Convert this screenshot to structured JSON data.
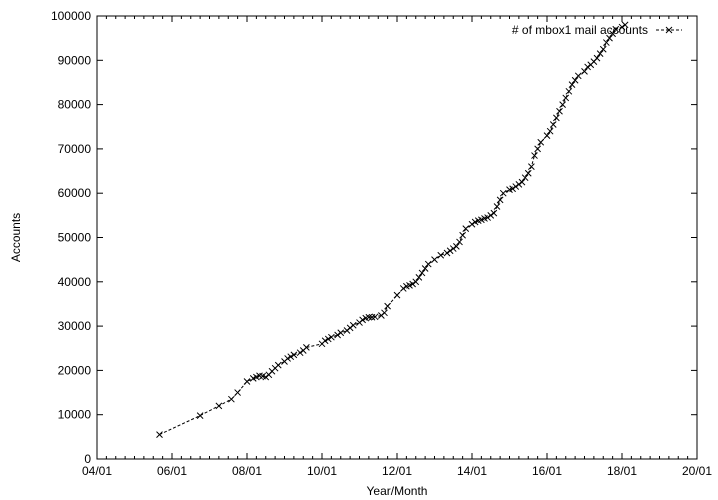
{
  "chart_data": {
    "type": "line",
    "title": "",
    "xlabel": "Year/Month",
    "ylabel": "Accounts",
    "x_tick_labels": [
      "04/01",
      "06/01",
      "08/01",
      "10/01",
      "12/01",
      "14/01",
      "16/01",
      "18/01",
      "20/01"
    ],
    "y_tick_labels": [
      "0",
      "10000",
      "20000",
      "30000",
      "40000",
      "50000",
      "60000",
      "70000",
      "80000",
      "90000",
      "100000"
    ],
    "xlim": [
      "04/01",
      "20/01"
    ],
    "ylim": [
      0,
      100000
    ],
    "grid": false,
    "legend_position": "top-right",
    "series": [
      {
        "name": "# of mbox1 mail accounts",
        "line_style": "dashed",
        "marker": "x",
        "color": "#000000",
        "x": [
          "05/09",
          "06/10",
          "07/04",
          "07/08",
          "07/10",
          "08/01",
          "08/03",
          "08/04",
          "08/05",
          "08/06",
          "08/07",
          "08/08",
          "08/09",
          "08/10",
          "08/11",
          "09/01",
          "09/02",
          "09/03",
          "09/04",
          "09/06",
          "09/07",
          "09/08",
          "10/01",
          "10/02",
          "10/03",
          "10/04",
          "10/06",
          "10/07",
          "10/09",
          "10/10",
          "10/11",
          "11/01",
          "11/02",
          "11/03",
          "11/04",
          "11/05",
          "11/06",
          "11/08",
          "11/09",
          "11/10",
          "12/01",
          "12/03",
          "12/04",
          "12/05",
          "12/06",
          "12/07",
          "12/08",
          "12/09",
          "12/10",
          "12/11",
          "13/01",
          "13/03",
          "13/05",
          "13/06",
          "13/07",
          "13/08",
          "13/09",
          "13/10",
          "13/11",
          "14/01",
          "14/02",
          "14/03",
          "14/04",
          "14/05",
          "14/06",
          "14/07",
          "14/08",
          "14/09",
          "14/10",
          "14/11",
          "15/01",
          "15/02",
          "15/03",
          "15/04",
          "15/05",
          "15/06",
          "15/07",
          "15/08",
          "15/09",
          "15/10",
          "15/11",
          "16/01",
          "16/02",
          "16/03",
          "16/04",
          "16/05",
          "16/06",
          "16/07",
          "16/08",
          "16/09",
          "16/10",
          "16/11",
          "17/01",
          "17/02",
          "17/03",
          "17/04",
          "17/05",
          "17/06",
          "17/07",
          "17/08",
          "17/09",
          "17/10",
          "17/11",
          "18/01",
          "18/02"
        ],
        "y": [
          5500,
          9800,
          12000,
          13500,
          15000,
          17500,
          18200,
          18500,
          18800,
          18700,
          18500,
          19000,
          19800,
          20500,
          21200,
          22000,
          22700,
          23100,
          23500,
          24000,
          24500,
          25200,
          26000,
          26700,
          27100,
          27500,
          28000,
          28500,
          29000,
          29600,
          30200,
          30800,
          31400,
          31800,
          32000,
          32000,
          32100,
          32400,
          33000,
          34500,
          37000,
          38500,
          39000,
          39200,
          39500,
          40000,
          41000,
          42000,
          43000,
          44000,
          45000,
          46000,
          46500,
          47000,
          47500,
          48000,
          49000,
          50500,
          52000,
          53000,
          53500,
          53800,
          54000,
          54300,
          54500,
          55000,
          55500,
          57000,
          58500,
          60000,
          60800,
          61000,
          61500,
          62000,
          62500,
          63500,
          64500,
          66000,
          68500,
          70000,
          71500,
          73000,
          74000,
          75500,
          77000,
          78500,
          80000,
          81500,
          83000,
          84500,
          85500,
          86500,
          87500,
          88500,
          89000,
          89700,
          90500,
          91500,
          92500,
          94000,
          95000,
          96000,
          97000,
          97500,
          98000
        ]
      }
    ]
  }
}
